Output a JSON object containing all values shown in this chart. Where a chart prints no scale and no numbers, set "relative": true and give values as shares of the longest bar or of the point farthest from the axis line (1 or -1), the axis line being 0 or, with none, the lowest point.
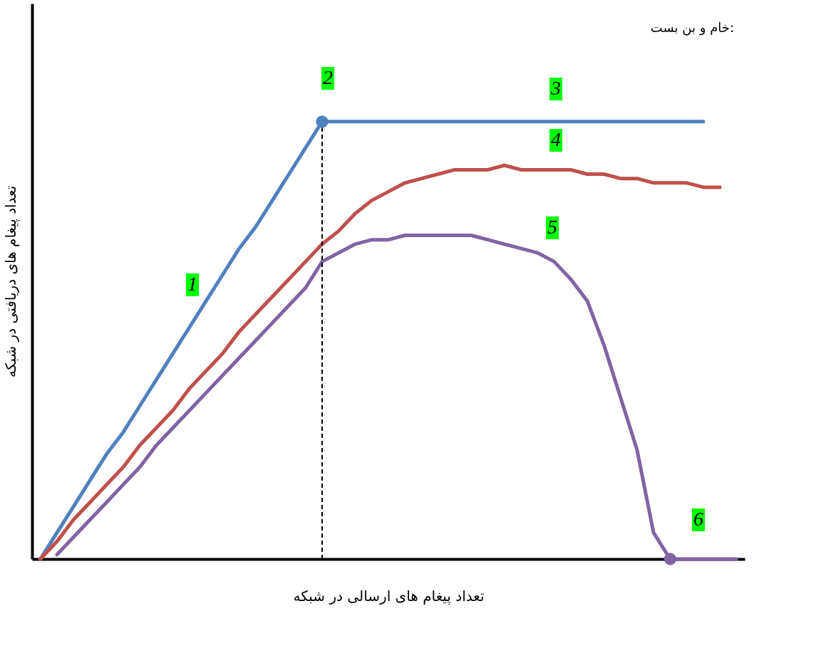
{
  "chart_data": {
    "type": "line",
    "relative": true,
    "xlabel": "تعداد پیغام های ارسالی  در شبکه",
    "ylabel": "تعداد پیغام های دریافتی در شبکه",
    "categories": [
      null,
      null,
      null,
      null,
      null,
      null,
      null,
      null,
      null,
      null,
      null,
      null,
      null,
      null,
      null,
      null,
      null,
      null,
      null,
      null,
      null,
      null,
      null,
      null,
      null,
      null,
      null,
      null,
      null,
      null,
      null,
      null,
      null,
      null,
      null,
      null,
      null,
      null,
      null,
      null,
      null,
      null,
      null
    ],
    "series": [
      {
        "color": "#4f81bd",
        "values": [
          0,
          0.06,
          0.12,
          0.18,
          0.24,
          0.29,
          0.35,
          0.41,
          0.47,
          0.53,
          0.59,
          0.65,
          0.71,
          0.76,
          0.82,
          0.88,
          0.94,
          1,
          1,
          1,
          1,
          1,
          1,
          1,
          1,
          1,
          1,
          1,
          1,
          1,
          1,
          1,
          1,
          1,
          1,
          1,
          1,
          1,
          1,
          1,
          1,
          null,
          null
        ]
      },
      {
        "color": "#c0504d",
        "values": [
          0,
          0.04,
          0.09,
          0.13,
          0.17,
          0.21,
          0.26,
          0.3,
          0.34,
          0.39,
          0.43,
          0.47,
          0.52,
          0.56,
          0.6,
          0.64,
          0.68,
          0.72,
          0.75,
          0.79,
          0.82,
          0.84,
          0.86,
          0.87,
          0.88,
          0.89,
          0.89,
          0.89,
          0.9,
          0.89,
          0.89,
          0.89,
          0.89,
          0.88,
          0.88,
          0.87,
          0.87,
          0.86,
          0.86,
          0.86,
          0.85,
          0.85,
          null
        ]
      },
      {
        "color": "#8064a2",
        "values": [
          null,
          0.01,
          0.05,
          0.09,
          0.13,
          0.17,
          0.21,
          0.26,
          0.3,
          0.34,
          0.38,
          0.42,
          0.46,
          0.5,
          0.54,
          0.58,
          0.62,
          0.68,
          0.7,
          0.72,
          0.73,
          0.73,
          0.74,
          0.74,
          0.74,
          0.74,
          0.74,
          0.73,
          0.72,
          0.71,
          0.7,
          0.68,
          0.64,
          0.59,
          0.49,
          0.37,
          0.25,
          0.06,
          0,
          0,
          0,
          0,
          0
        ]
      }
    ],
    "annotations": [
      "1",
      "2",
      "3",
      "4",
      "5",
      "6",
      "خام و بن بست:"
    ],
    "grid": false,
    "line_style": "solid"
  }
}
